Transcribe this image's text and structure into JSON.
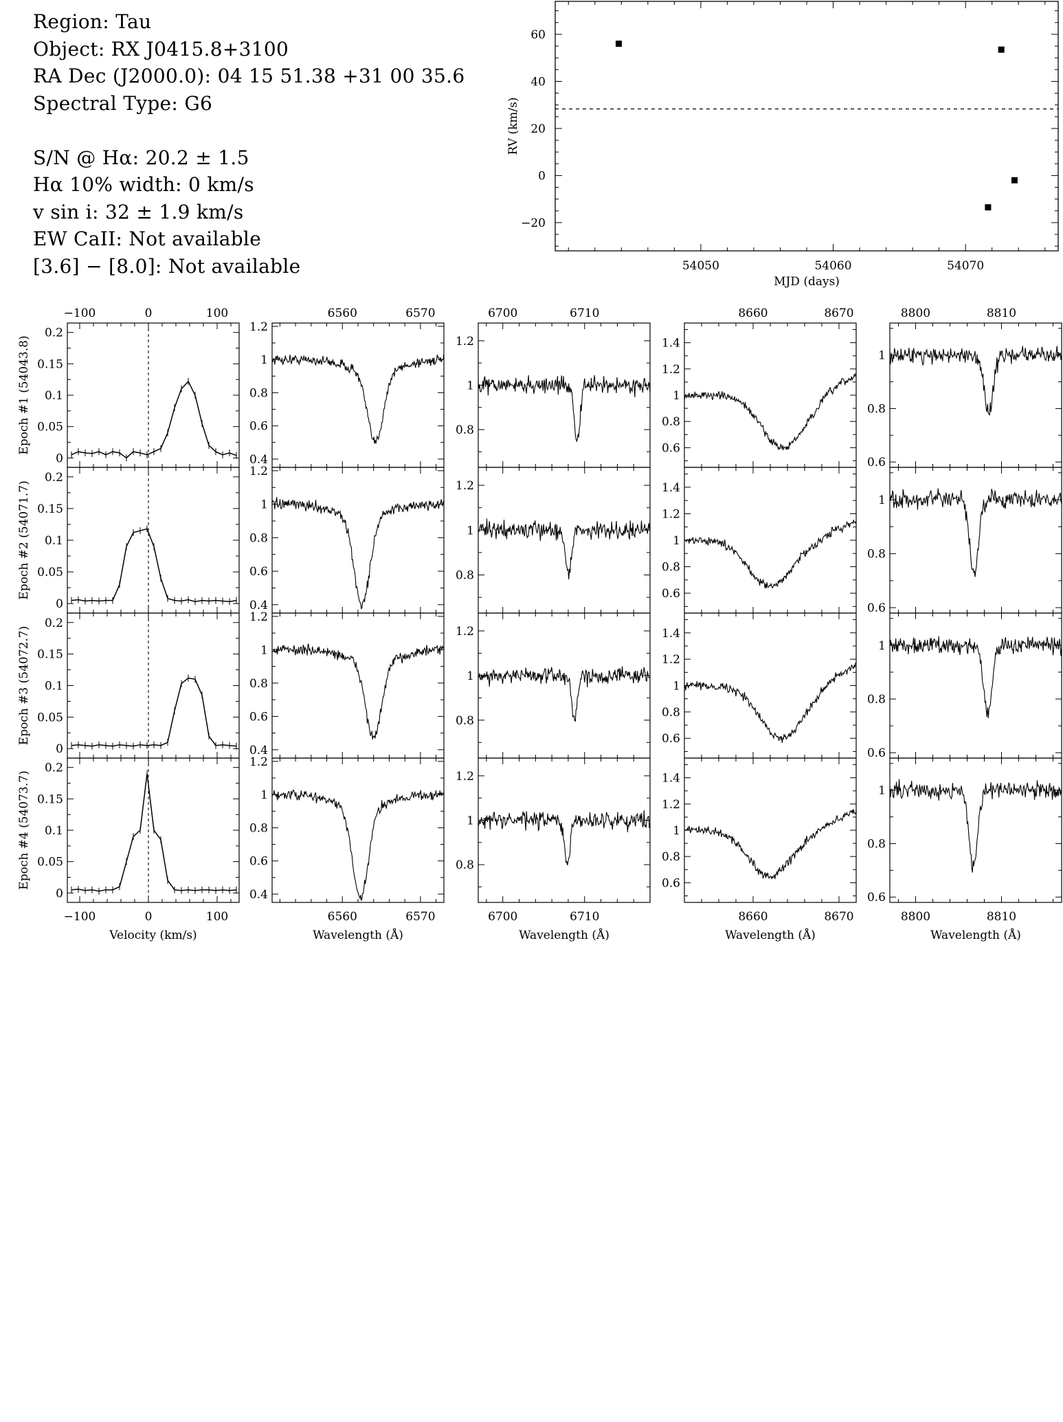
{
  "info": {
    "region": "Region: Tau",
    "object": "Object: RX J0415.8+3100",
    "radec": "RA Dec (J2000.0): 04 15 51.38 +31 00 35.6",
    "sptype": "Spectral Type: G6",
    "sn": "S/N @ Hα: 20.2 ± 1.5",
    "ha_width": "Hα 10% width: 0 km/s",
    "vsini": "v sin i: 32 ± 1.9 km/s",
    "ew_caii": "EW CaII: Not available",
    "irac": "[3.6] − [8.0]: Not available"
  },
  "chart_data": [
    {
      "id": "rv",
      "type": "scatter",
      "title": "",
      "xlabel": "MJD (days)",
      "ylabel": "RV (km/s)",
      "xlim": [
        54039,
        54077
      ],
      "ylim": [
        -32,
        74
      ],
      "xticks": [
        54050,
        54060,
        54070
      ],
      "yticks": [
        -20,
        0,
        20,
        40,
        60
      ],
      "mean_line": 28.3,
      "x": [
        54043.8,
        54071.7,
        54072.7,
        54073.7
      ],
      "y": [
        56,
        -13.5,
        53.5,
        -2
      ],
      "grid": false
    },
    {
      "id": "ccf",
      "type": "line",
      "title": "",
      "xlabel": "Velocity (km/s)",
      "xlim": [
        -118,
        132
      ],
      "ylim": [
        -0.015,
        0.215
      ],
      "xticks": [
        -100,
        0,
        100
      ],
      "yticks": [
        0,
        0.05,
        0.1,
        0.15,
        0.2
      ],
      "rows": [
        "Epoch #1 (54043.8)",
        "Epoch #2 (54071.7)",
        "Epoch #3 (54072.7)",
        "Epoch #4 (54073.7)"
      ],
      "x": [
        -112,
        -102,
        -92,
        -82,
        -72,
        -62,
        -52,
        -42,
        -32,
        -22,
        -12,
        -2,
        8,
        18,
        28,
        38,
        48,
        58,
        68,
        78,
        88,
        98,
        108,
        118,
        128
      ],
      "series": [
        {
          "values": [
            0.005,
            0.01,
            0.008,
            0.007,
            0.01,
            0.005,
            0.01,
            0.008,
            0.0,
            0.01,
            0.008,
            0.005,
            0.01,
            0.015,
            0.04,
            0.08,
            0.11,
            0.122,
            0.1,
            0.055,
            0.02,
            0.01,
            0.005,
            0.008,
            0.004
          ]
        },
        {
          "values": [
            0.005,
            0.006,
            0.004,
            0.005,
            0.004,
            0.005,
            0.005,
            0.03,
            0.09,
            0.112,
            0.115,
            0.118,
            0.09,
            0.04,
            0.008,
            0.005,
            0.004,
            0.006,
            0.003,
            0.005,
            0.004,
            0.005,
            0.004,
            0.003,
            0.005
          ]
        },
        {
          "values": [
            0.005,
            0.006,
            0.005,
            0.004,
            0.006,
            0.005,
            0.004,
            0.006,
            0.005,
            0.004,
            0.006,
            0.005,
            0.006,
            0.005,
            0.01,
            0.06,
            0.103,
            0.112,
            0.11,
            0.085,
            0.02,
            0.005,
            0.006,
            0.005,
            0.004
          ]
        },
        {
          "values": [
            0.005,
            0.006,
            0.004,
            0.005,
            0.003,
            0.005,
            0.005,
            0.01,
            0.05,
            0.09,
            0.1,
            0.19,
            0.1,
            0.085,
            0.02,
            0.005,
            0.004,
            0.005,
            0.004,
            0.005,
            0.005,
            0.004,
            0.005,
            0.004,
            0.005
          ]
        }
      ]
    },
    {
      "id": "ha",
      "type": "line",
      "title": "",
      "xlabel": "Wavelength (Å)",
      "xlim": [
        6551,
        6573
      ],
      "ylim": [
        0.35,
        1.22
      ],
      "xticks": [
        6560,
        6570
      ],
      "yticks": [
        0.4,
        0.6,
        0.8,
        1,
        1.2
      ],
      "line_center": [
        6564.2,
        6562.5,
        6564.0,
        6562.3
      ],
      "line_depth": [
        0.42,
        0.52,
        0.45,
        0.55
      ],
      "line_width": 1.0
    },
    {
      "id": "li",
      "type": "line",
      "title": "",
      "xlabel": "Wavelength (Å)",
      "xlim": [
        6697,
        6718
      ],
      "ylim": [
        0.63,
        1.28
      ],
      "xticks": [
        6700,
        6710
      ],
      "yticks": [
        0.8,
        1,
        1.2
      ],
      "line_center": [
        6709.1,
        6708.0,
        6708.8,
        6707.9
      ],
      "line_depth": [
        0.25,
        0.2,
        0.2,
        0.2
      ],
      "line_width": 0.35
    },
    {
      "id": "ca",
      "type": "line",
      "title": "",
      "xlabel": "Wavelength (Å)",
      "xlim": [
        8652,
        8672
      ],
      "ylim": [
        0.45,
        1.55
      ],
      "xticks": [
        8660,
        8670
      ],
      "yticks": [
        0.6,
        0.8,
        1,
        1.2,
        1.4
      ],
      "line_center": [
        8663.5,
        8662.0,
        8663.3,
        8662.0
      ],
      "line_depth": [
        0.4,
        0.35,
        0.4,
        0.35
      ],
      "line_width": 2.5
    },
    {
      "id": "ir",
      "type": "line",
      "title": "",
      "xlabel": "Wavelength (Å)",
      "xlim": [
        8797,
        8817
      ],
      "ylim": [
        0.58,
        1.12
      ],
      "xticks": [
        8800,
        8810
      ],
      "yticks": [
        0.6,
        0.8,
        1
      ],
      "line_center": [
        8808.5,
        8806.8,
        8808.4,
        8806.7
      ],
      "line_depth": [
        0.22,
        0.28,
        0.25,
        0.28
      ],
      "line_width": 0.5
    }
  ]
}
